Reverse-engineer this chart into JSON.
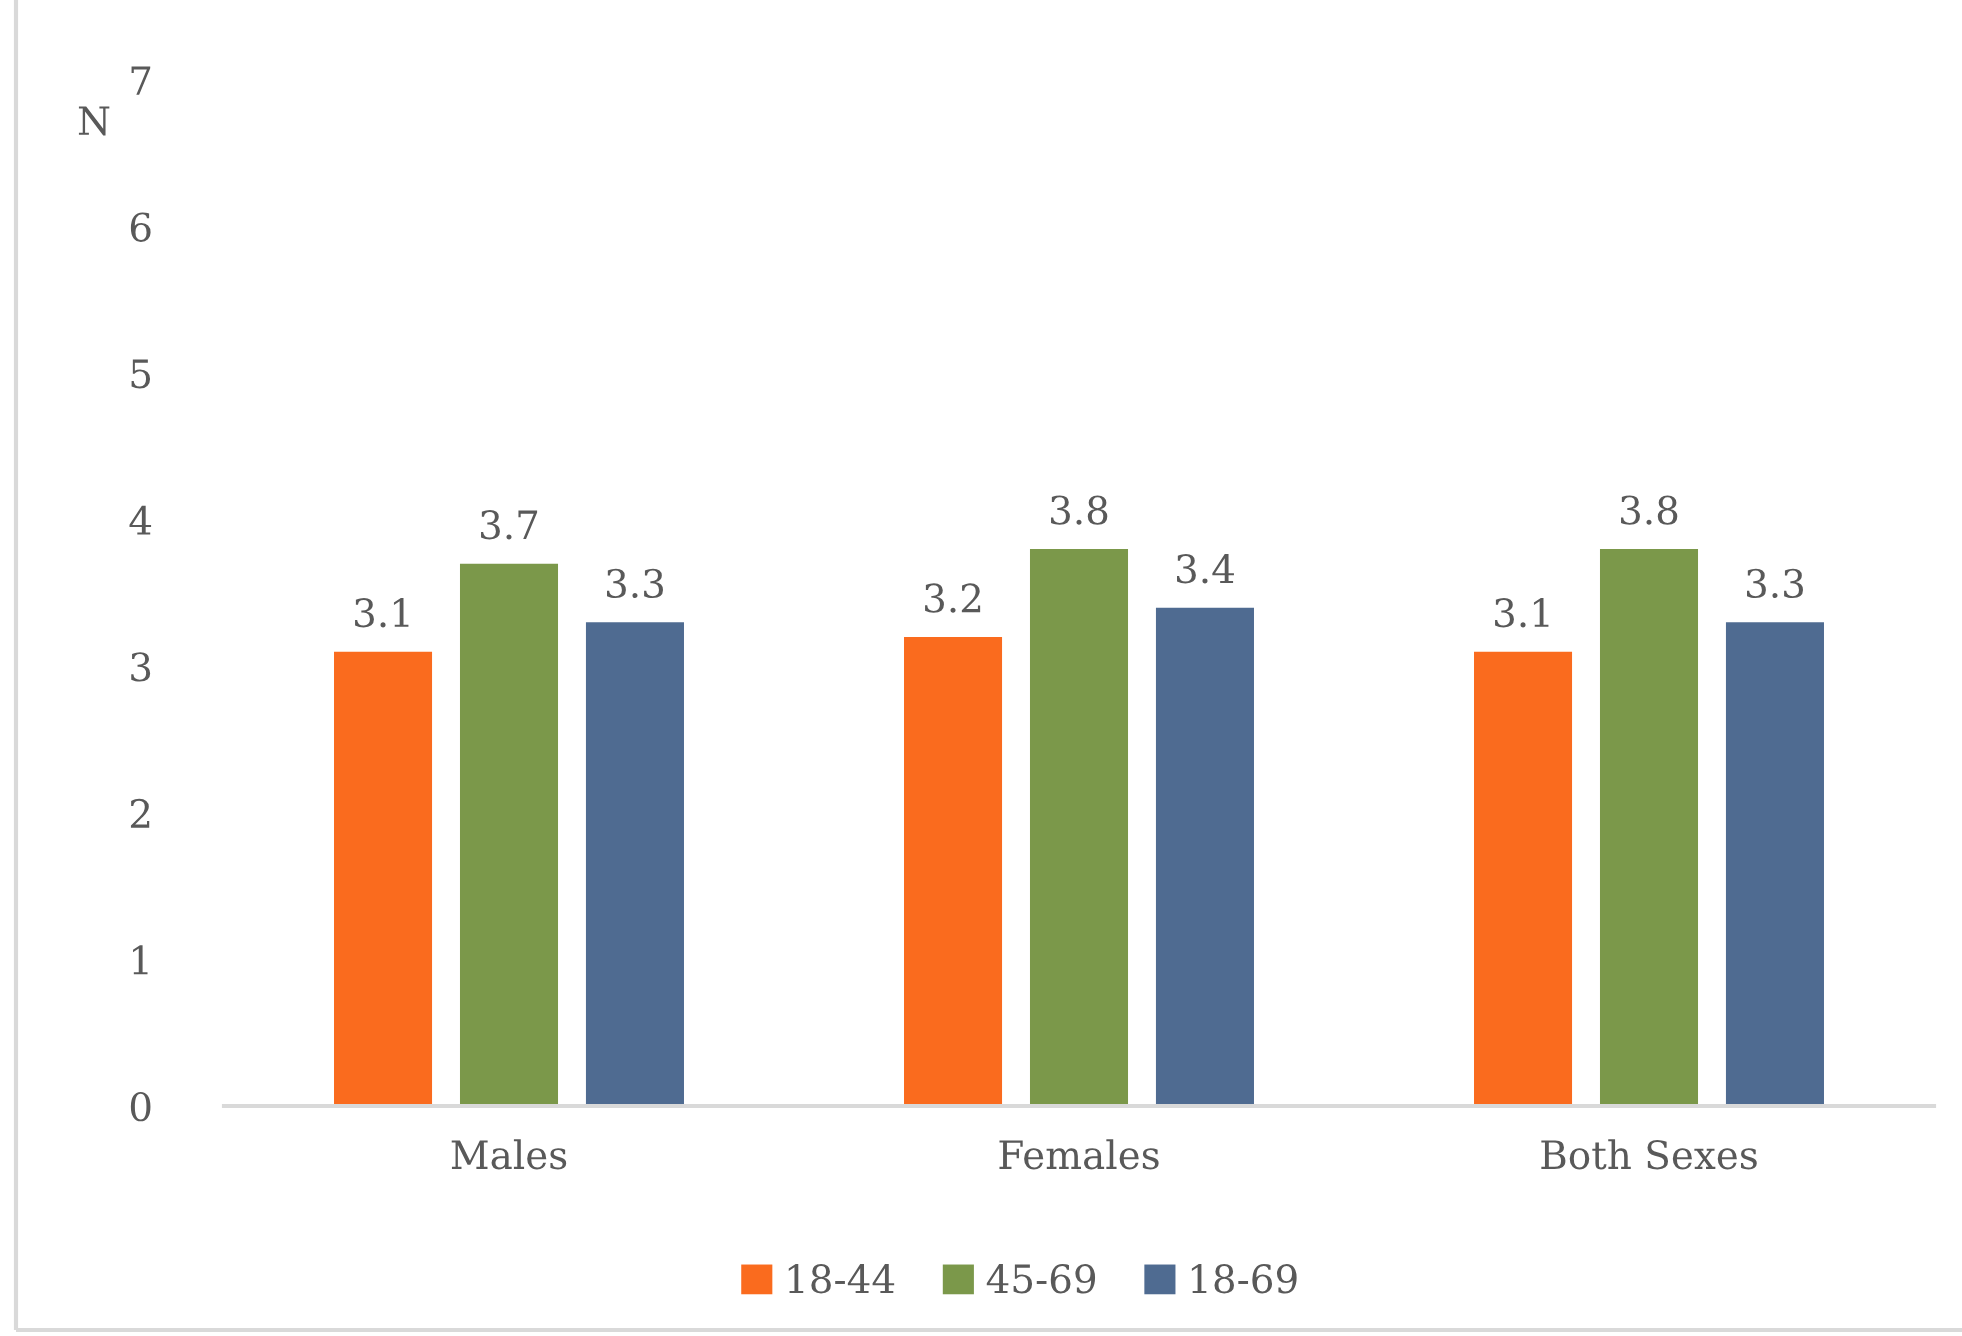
{
  "chart_data": {
    "type": "bar",
    "ylabel": "N",
    "categories": [
      "Males",
      "Females",
      "Both Sexes"
    ],
    "series": [
      {
        "name": "18-44",
        "color": "#fa6b1e",
        "values": [
          3.1,
          3.2,
          3.1
        ]
      },
      {
        "name": "45-69",
        "color": "#7b984a",
        "values": [
          3.7,
          3.8,
          3.8
        ]
      },
      {
        "name": "18-69",
        "color": "#4f6b91",
        "values": [
          3.3,
          3.4,
          3.3
        ]
      }
    ],
    "ylim": [
      0,
      7
    ],
    "yticks": [
      0,
      1,
      2,
      3,
      4,
      5,
      6,
      7
    ],
    "data_labels": true,
    "legend": "bottom"
  }
}
